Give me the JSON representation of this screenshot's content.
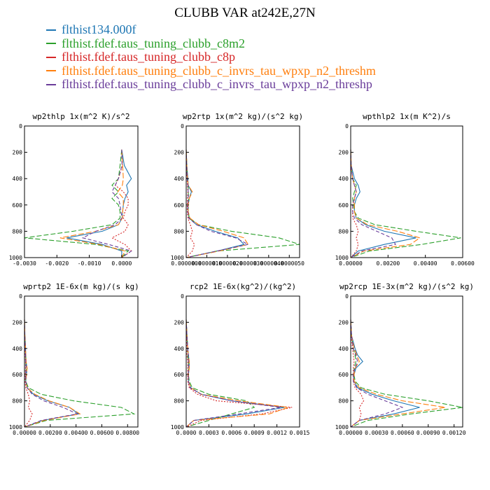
{
  "title": "CLUBB VAR at242E,27N",
  "legend": [
    {
      "label": "flthist134.000f",
      "color": "#1f77b4"
    },
    {
      "label": "flthist.fdef.taus_tuning_clubb_c8m2",
      "color": "#2ca02c"
    },
    {
      "label": "flthist.fdef.taus_tuning_clubb_c8p",
      "color": "#d62728"
    },
    {
      "label": "flthist.fdef.taus_tuning_clubb_c_invrs_tau_wpxp_n2_threshm",
      "color": "#ff7f0e"
    },
    {
      "label": "flthist.fdef.taus_tuning_clubb_c_invrs_tau_wpxp_n2_threshp",
      "color": "#6a3d9a"
    }
  ],
  "chart_data": [
    {
      "type": "line",
      "title": "wp2thlp  1x(m^2 K)/s^2",
      "xlim": [
        -0.003,
        0.0005
      ],
      "ylim": [
        1000,
        0
      ],
      "xticks": [
        "-0.0030",
        "-0.0020",
        "-0.0010",
        "0.0000"
      ],
      "xtick_values": [
        -0.003,
        -0.002,
        -0.001,
        0
      ],
      "yticks": [
        0,
        200,
        400,
        600,
        800,
        1000
      ],
      "y": [
        180,
        300,
        400,
        450,
        500,
        550,
        600,
        650,
        700,
        750,
        800,
        850,
        900,
        950,
        1000
      ],
      "series": [
        {
          "values": [
            0.0,
            8e-05,
            0.0003,
            0.00015,
            0.0002,
            0.0001,
            5e-05,
            3e-05,
            1e-05,
            -0.0001,
            -0.0006,
            -0.0017,
            -0.0006,
            0.0,
            0.0
          ]
        },
        {
          "values": [
            0.0,
            -5e-05,
            -0.0001,
            -0.0003,
            -0.0001,
            -0.0003,
            -0.0001,
            -5e-05,
            -5e-05,
            -0.0003,
            -0.0015,
            -0.003,
            -0.0008,
            0.0002,
            0.0
          ]
        },
        {
          "values": [
            0.0,
            2e-05,
            -0.0001,
            -0.0002,
            5e-05,
            0.0002,
            0.0002,
            0.0001,
            5e-05,
            0.0002,
            0.0001,
            -0.0003,
            0.0001,
            0.0003,
            0.0
          ]
        },
        {
          "values": [
            0.0,
            3e-05,
            5e-05,
            2e-05,
            -0.00012,
            5e-05,
            5e-05,
            3e-05,
            2e-05,
            -0.0001,
            -0.0008,
            -0.0019,
            -0.0007,
            0.0001,
            0.0
          ]
        },
        {
          "values": [
            0.0,
            1e-05,
            -0.0001,
            -0.0002,
            -0.0003,
            -0.0001,
            -5e-05,
            -2e-05,
            1e-05,
            -0.0002,
            -0.0008,
            -0.0012,
            -0.0004,
            0.0003,
            0.0
          ]
        }
      ]
    },
    {
      "type": "line",
      "title": "wp2rtp  1x(m^2 kg)/(s^2 kg)",
      "xlim": [
        0,
        5.5e-06
      ],
      "ylim": [
        1000,
        0
      ],
      "xticks": [
        "0.0000000",
        "0.0000010",
        "0.0000020",
        "0.0000030",
        "0.0000040",
        "0.0000050"
      ],
      "xtick_values": [
        0,
        1e-06,
        2e-06,
        3e-06,
        4e-06,
        5e-06
      ],
      "yticks": [
        0,
        200,
        400,
        600,
        800,
        1000
      ],
      "y": [
        180,
        300,
        400,
        450,
        500,
        550,
        600,
        650,
        700,
        750,
        800,
        850,
        900,
        950,
        1000
      ],
      "series": [
        {
          "values": [
            0.0,
            3e-08,
            8e-08,
            1e-07,
            2.5e-07,
            1.5e-07,
            1e-07,
            8e-08,
            1.5e-07,
            5e-07,
            1.4e-06,
            2.5e-06,
            2.8e-06,
            1.5e-06,
            0.0
          ]
        },
        {
          "values": [
            0.0,
            3e-08,
            6e-08,
            1e-07,
            1e-07,
            1.2e-07,
            1e-07,
            1e-07,
            1.5e-07,
            6e-07,
            2.2e-06,
            4.5e-06,
            5.5e-06,
            1.5e-06,
            0.0
          ]
        },
        {
          "values": [
            0.0,
            2e-08,
            4e-08,
            6e-08,
            8e-08,
            6e-08,
            5e-08,
            5e-08,
            8e-08,
            2e-07,
            3e-07,
            2e-07,
            4e-07,
            3e-07,
            0.0
          ]
        },
        {
          "values": [
            0.0,
            3e-08,
            6e-08,
            1e-07,
            3e-07,
            1.5e-07,
            1e-07,
            1e-07,
            1.8e-07,
            6e-07,
            1.8e-06,
            2.8e-06,
            3e-06,
            1.6e-06,
            0.0
          ]
        },
        {
          "values": [
            0.0,
            2e-08,
            5e-08,
            8e-08,
            1e-07,
            1e-07,
            8e-08,
            8e-08,
            1.2e-07,
            5e-07,
            1.2e-06,
            2.4e-06,
            3e-06,
            1.5e-06,
            0.0
          ]
        }
      ]
    },
    {
      "type": "line",
      "title": "wpthlp2  1x(m K^2)/s",
      "xlim": [
        0,
        0.006
      ],
      "ylim": [
        1000,
        0
      ],
      "xticks": [
        "0.00000",
        "0.00200",
        "0.00400",
        "0.00600"
      ],
      "xtick_values": [
        0,
        0.002,
        0.004,
        0.006
      ],
      "yticks": [
        0,
        200,
        400,
        600,
        800,
        1000
      ],
      "y": [
        180,
        300,
        400,
        450,
        500,
        550,
        600,
        650,
        700,
        750,
        800,
        850,
        900,
        950,
        1000
      ],
      "series": [
        {
          "values": [
            0.0,
            3e-05,
            0.0002,
            0.0004,
            0.0005,
            0.0003,
            0.0002,
            0.0002,
            0.0003,
            0.0008,
            0.0018,
            0.0035,
            0.0018,
            0.0004,
            0.0
          ]
        },
        {
          "values": [
            0.0,
            2e-05,
            0.0001,
            0.0003,
            0.0002,
            0.0001,
            0.00015,
            0.0002,
            0.0004,
            0.0013,
            0.0035,
            0.0059,
            0.0038,
            0.001,
            0.0
          ]
        },
        {
          "values": [
            0.0,
            2e-05,
            0.0001,
            0.0002,
            0.0003,
            0.0002,
            0.0001,
            0.0001,
            0.0001,
            0.0003,
            0.0004,
            0.0003,
            0.0004,
            0.0003,
            0.0
          ]
        },
        {
          "values": [
            0.0,
            3e-05,
            0.0001,
            0.0002,
            0.0003,
            0.0002,
            0.0002,
            0.0002,
            0.0003,
            0.0009,
            0.0025,
            0.0037,
            0.0032,
            0.0007,
            0.0
          ]
        },
        {
          "values": [
            0.0,
            2e-05,
            0.0001,
            0.0002,
            0.0003,
            0.0002,
            0.0001,
            0.0001,
            0.0002,
            0.0006,
            0.0014,
            0.0022,
            0.0024,
            0.0006,
            0.0
          ]
        }
      ]
    },
    {
      "type": "line",
      "title": "wprtp2  1E-6x(m kg)/(s kg)",
      "xlim": [
        0,
        0.0088
      ],
      "ylim": [
        1000,
        0
      ],
      "xticks": [
        "0.00000",
        "0.00200",
        "0.00400",
        "0.00600",
        "0.00800"
      ],
      "xtick_values": [
        0,
        0.002,
        0.004,
        0.006,
        0.008
      ],
      "yticks": [
        0,
        200,
        400,
        600,
        800,
        1000
      ],
      "y": [
        180,
        300,
        400,
        450,
        500,
        550,
        600,
        650,
        700,
        750,
        800,
        850,
        900,
        950,
        1000
      ],
      "series": [
        {
          "values": [
            0.0,
            3e-05,
            8e-05,
            0.0001,
            0.00012,
            0.0002,
            0.00015,
            0.0001,
            0.0002,
            0.0007,
            0.0018,
            0.0035,
            0.0042,
            0.0014,
            0.0
          ]
        },
        {
          "values": [
            0.0,
            2e-05,
            6e-05,
            0.0001,
            0.0001,
            0.00012,
            0.0001,
            0.0001,
            0.0003,
            0.0013,
            0.0038,
            0.0075,
            0.0085,
            0.0017,
            0.0
          ]
        },
        {
          "values": [
            0.0,
            2e-05,
            4e-05,
            6e-05,
            8e-05,
            8e-05,
            6e-05,
            5e-05,
            0.0001,
            0.0003,
            0.0004,
            0.0003,
            0.0006,
            0.0004,
            0.0
          ]
        },
        {
          "values": [
            0.0,
            3e-05,
            8e-05,
            0.0001,
            0.00013,
            0.0002,
            0.00015,
            0.0001,
            0.0002,
            0.0008,
            0.0019,
            0.0035,
            0.0043,
            0.0015,
            0.0
          ]
        },
        {
          "values": [
            0.0,
            2e-05,
            6e-05,
            8e-05,
            0.0001,
            0.00012,
            0.0001,
            0.0001,
            0.0002,
            0.0006,
            0.0015,
            0.003,
            0.0041,
            0.0013,
            0.0
          ]
        }
      ]
    },
    {
      "type": "line",
      "title": "rcp2  1E-6x(kg^2)/(kg^2)",
      "xlim": [
        0,
        0.0015
      ],
      "ylim": [
        1000,
        0
      ],
      "xticks": [
        "0.0000",
        "0.0003",
        "0.0006",
        "0.0009",
        "0.0012",
        "0.0015"
      ],
      "xtick_values": [
        0,
        0.0003,
        0.0006,
        0.0009,
        0.0012,
        0.0015
      ],
      "yticks": [
        0,
        200,
        400,
        600,
        800,
        1000
      ],
      "y": [
        180,
        300,
        400,
        450,
        500,
        550,
        600,
        650,
        700,
        750,
        800,
        850,
        900,
        950,
        1000
      ],
      "series": [
        {
          "values": [
            0.0,
            1e-05,
            2e-05,
            3e-05,
            4e-05,
            4e-05,
            3e-05,
            3e-05,
            6e-05,
            0.0002,
            0.0006,
            0.0013,
            0.0008,
            0.0001,
            0.0
          ]
        },
        {
          "values": [
            0.0,
            1e-05,
            2e-05,
            2e-05,
            3e-05,
            3e-05,
            3e-05,
            4e-05,
            8e-05,
            0.0003,
            0.0008,
            0.0009,
            0.0006,
            0.0003,
            0.0
          ]
        },
        {
          "values": [
            0.0,
            5e-06,
            1e-05,
            1e-05,
            2e-05,
            2e-05,
            2e-05,
            2e-05,
            4e-05,
            0.00015,
            0.0004,
            0.0014,
            0.001,
            0.0002,
            0.0
          ]
        },
        {
          "values": [
            0.0,
            1e-05,
            2e-05,
            3e-05,
            4e-05,
            4e-05,
            3e-05,
            3e-05,
            6e-05,
            0.0002,
            0.0007,
            0.00135,
            0.0011,
            0.0001,
            0.0
          ]
        },
        {
          "values": [
            0.0,
            1e-05,
            2e-05,
            3e-05,
            3e-05,
            3e-05,
            3e-05,
            3e-05,
            5e-05,
            0.0002,
            0.0006,
            0.00125,
            0.0007,
            0.0001,
            0.0
          ]
        }
      ]
    },
    {
      "type": "line",
      "title": "wp2rcp  1E-3x(m^2 kg)/(s^2 kg)",
      "xlim": [
        0,
        0.0013
      ],
      "ylim": [
        1000,
        0
      ],
      "xticks": [
        "0.00000",
        "0.00030",
        "0.00060",
        "0.00090",
        "0.00120"
      ],
      "xtick_values": [
        0,
        0.0003,
        0.0006,
        0.0009,
        0.0012
      ],
      "yticks": [
        0,
        200,
        400,
        600,
        800,
        1000
      ],
      "y": [
        180,
        300,
        400,
        450,
        500,
        550,
        600,
        650,
        700,
        750,
        800,
        850,
        900,
        950,
        1000
      ],
      "series": [
        {
          "values": [
            0.0,
            1e-05,
            5e-05,
            8e-05,
            0.00014,
            6e-05,
            4e-05,
            4e-05,
            8e-05,
            0.00025,
            0.0005,
            0.0008,
            0.0005,
            0.0001,
            0.0
          ]
        },
        {
          "values": [
            0.0,
            1e-05,
            3e-05,
            5e-05,
            6e-05,
            4e-05,
            4e-05,
            5e-05,
            0.00012,
            0.0004,
            0.0009,
            0.0013,
            0.0007,
            0.0002,
            0.0
          ]
        },
        {
          "values": [
            0.0,
            5e-06,
            2e-05,
            3e-05,
            4e-05,
            3e-05,
            3e-05,
            3e-05,
            5e-05,
            0.00012,
            0.00015,
            0.0001,
            0.00012,
            0.0001,
            0.0
          ]
        },
        {
          "values": [
            0.0,
            1e-05,
            4e-05,
            7e-05,
            0.0001,
            5e-05,
            4e-05,
            4e-05,
            0.0001,
            0.0003,
            0.0006,
            0.0011,
            0.0006,
            0.0001,
            0.0
          ]
        },
        {
          "values": [
            0.0,
            1e-05,
            3e-05,
            6e-05,
            8e-05,
            5e-05,
            3e-05,
            3e-05,
            7e-05,
            0.0002,
            0.0004,
            0.0006,
            0.0004,
            0.0001,
            0.0
          ]
        }
      ]
    }
  ]
}
